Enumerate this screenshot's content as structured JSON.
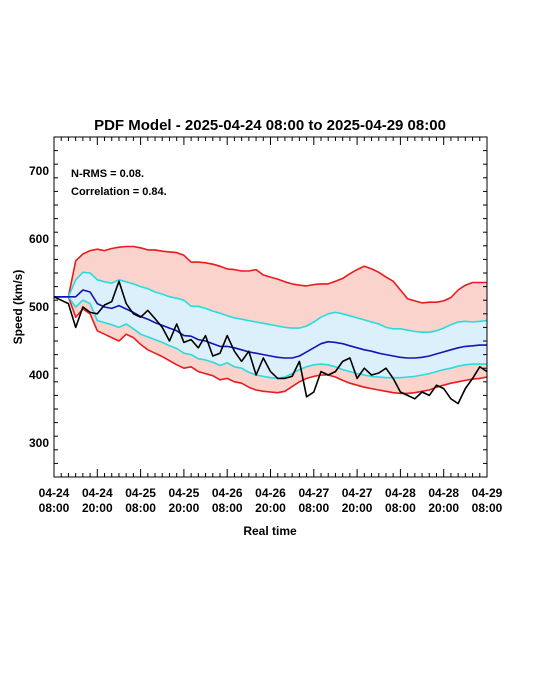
{
  "chart_data": {
    "type": "line",
    "title": "PDF Model - 2025-04-24 08:00 to 2025-04-29 08:00",
    "xlabel": "Real time",
    "ylabel": "Speed (km/s)",
    "xlim": [
      "2025-04-24 08:00",
      "2025-04-29 08:00"
    ],
    "ylim": [
      250,
      750
    ],
    "yticks": [
      300,
      400,
      500,
      600,
      700
    ],
    "xticks": [
      {
        "line1": "04-24",
        "line2": "08:00",
        "t": "2025-04-24 08:00"
      },
      {
        "line1": "04-24",
        "line2": "20:00",
        "t": "2025-04-24 20:00"
      },
      {
        "line1": "04-25",
        "line2": "08:00",
        "t": "2025-04-25 08:00"
      },
      {
        "line1": "04-25",
        "line2": "20:00",
        "t": "2025-04-25 20:00"
      },
      {
        "line1": "04-26",
        "line2": "08:00",
        "t": "2025-04-26 08:00"
      },
      {
        "line1": "04-26",
        "line2": "20:00",
        "t": "2025-04-26 20:00"
      },
      {
        "line1": "04-27",
        "line2": "08:00",
        "t": "2025-04-27 08:00"
      },
      {
        "line1": "04-27",
        "line2": "20:00",
        "t": "2025-04-27 20:00"
      },
      {
        "line1": "04-28",
        "line2": "08:00",
        "t": "2025-04-28 08:00"
      },
      {
        "line1": "04-28",
        "line2": "20:00",
        "t": "2025-04-28 20:00"
      },
      {
        "line1": "04-29",
        "line2": "08:00",
        "t": "2025-04-29 08:00"
      }
    ],
    "annotations": [
      "N-RMS = 0.08.",
      "Correlation = 0.84."
    ],
    "colors": {
      "outer": "#e81c1c",
      "outer_fill": "#fbd3cd",
      "inner": "#28dcdc",
      "inner_fill": "#dcf0fb",
      "median": "#1414b8",
      "observed": "#000000"
    },
    "x_hours": [
      0,
      4,
      6,
      8,
      10,
      12,
      14,
      16,
      18,
      20,
      22,
      24,
      26,
      28,
      30,
      32,
      34,
      36,
      38,
      40,
      42,
      44,
      46,
      48,
      50,
      52,
      54,
      56,
      58,
      60,
      62,
      64,
      66,
      68,
      70,
      72,
      74,
      76,
      78,
      80,
      82,
      84,
      86,
      88,
      90,
      92,
      94,
      96,
      98,
      100,
      102,
      104,
      106,
      108,
      110,
      112,
      114,
      116,
      118,
      120
    ],
    "series": [
      {
        "role": "outer-upper",
        "values": [
          515,
          515,
          568,
          578,
          583,
          585,
          583,
          586,
          588,
          589,
          589,
          587,
          584,
          584,
          582,
          581,
          580,
          576,
          566,
          566,
          565,
          563,
          560,
          556,
          555,
          553,
          553,
          555,
          547,
          544,
          541,
          537,
          534,
          532,
          531,
          533,
          534,
          534,
          538,
          542,
          549,
          555,
          560,
          556,
          551,
          544,
          538,
          525,
          512,
          509,
          506,
          507,
          507,
          509,
          514,
          525,
          532,
          536,
          536,
          536
        ]
      },
      {
        "role": "outer-lower",
        "values": [
          515,
          515,
          485,
          497,
          490,
          465,
          460,
          455,
          450,
          460,
          455,
          445,
          437,
          432,
          427,
          421,
          415,
          410,
          412,
          405,
          402,
          399,
          393,
          395,
          390,
          388,
          382,
          378,
          376,
          375,
          374,
          376,
          383,
          390,
          395,
          398,
          400,
          400,
          397,
          392,
          388,
          385,
          382,
          380,
          378,
          376,
          374,
          373,
          373,
          374,
          376,
          378,
          382,
          385,
          388,
          390,
          392,
          394,
          395,
          397
        ]
      },
      {
        "role": "inner-upper",
        "values": [
          515,
          515,
          540,
          551,
          550,
          540,
          537,
          535,
          540,
          537,
          534,
          530,
          527,
          522,
          519,
          515,
          513,
          510,
          501,
          501,
          498,
          494,
          491,
          487,
          484,
          482,
          480,
          478,
          476,
          474,
          472,
          470,
          469,
          469,
          472,
          478,
          485,
          490,
          492,
          490,
          487,
          484,
          481,
          478,
          475,
          470,
          468,
          468,
          466,
          464,
          463,
          463,
          465,
          469,
          474,
          478,
          479,
          478,
          479,
          480
        ]
      },
      {
        "role": "inner-lower",
        "values": [
          515,
          515,
          500,
          510,
          505,
          480,
          477,
          474,
          470,
          475,
          468,
          460,
          456,
          452,
          448,
          443,
          439,
          432,
          430,
          424,
          422,
          419,
          414,
          418,
          412,
          410,
          404,
          400,
          398,
          396,
          395,
          397,
          402,
          408,
          412,
          415,
          416,
          415,
          412,
          408,
          405,
          402,
          400,
          398,
          397,
          396,
          396,
          396,
          397,
          398,
          400,
          402,
          405,
          408,
          410,
          413,
          415,
          416,
          416,
          416
        ]
      },
      {
        "role": "median",
        "values": [
          515,
          515,
          515,
          525,
          522,
          505,
          500,
          498,
          502,
          497,
          492,
          486,
          482,
          477,
          473,
          469,
          465,
          458,
          457,
          452,
          450,
          446,
          442,
          442,
          440,
          437,
          434,
          432,
          430,
          428,
          426,
          425,
          425,
          428,
          434,
          440,
          446,
          449,
          448,
          446,
          443,
          440,
          437,
          435,
          432,
          430,
          428,
          426,
          425,
          425,
          426,
          428,
          431,
          434,
          437,
          440,
          442,
          443,
          444,
          444
        ]
      },
      {
        "role": "observed",
        "values": [
          515,
          505,
          470,
          500,
          492,
          490,
          503,
          508,
          538,
          505,
          490,
          485,
          495,
          483,
          470,
          450,
          475,
          448,
          452,
          440,
          458,
          428,
          432,
          458,
          435,
          420,
          435,
          400,
          425,
          405,
          395,
          395,
          398,
          420,
          368,
          375,
          405,
          400,
          405,
          420,
          425,
          395,
          410,
          400,
          403,
          410,
          395,
          375,
          370,
          365,
          375,
          370,
          385,
          380,
          365,
          358,
          380,
          395,
          412,
          405
        ]
      }
    ]
  }
}
